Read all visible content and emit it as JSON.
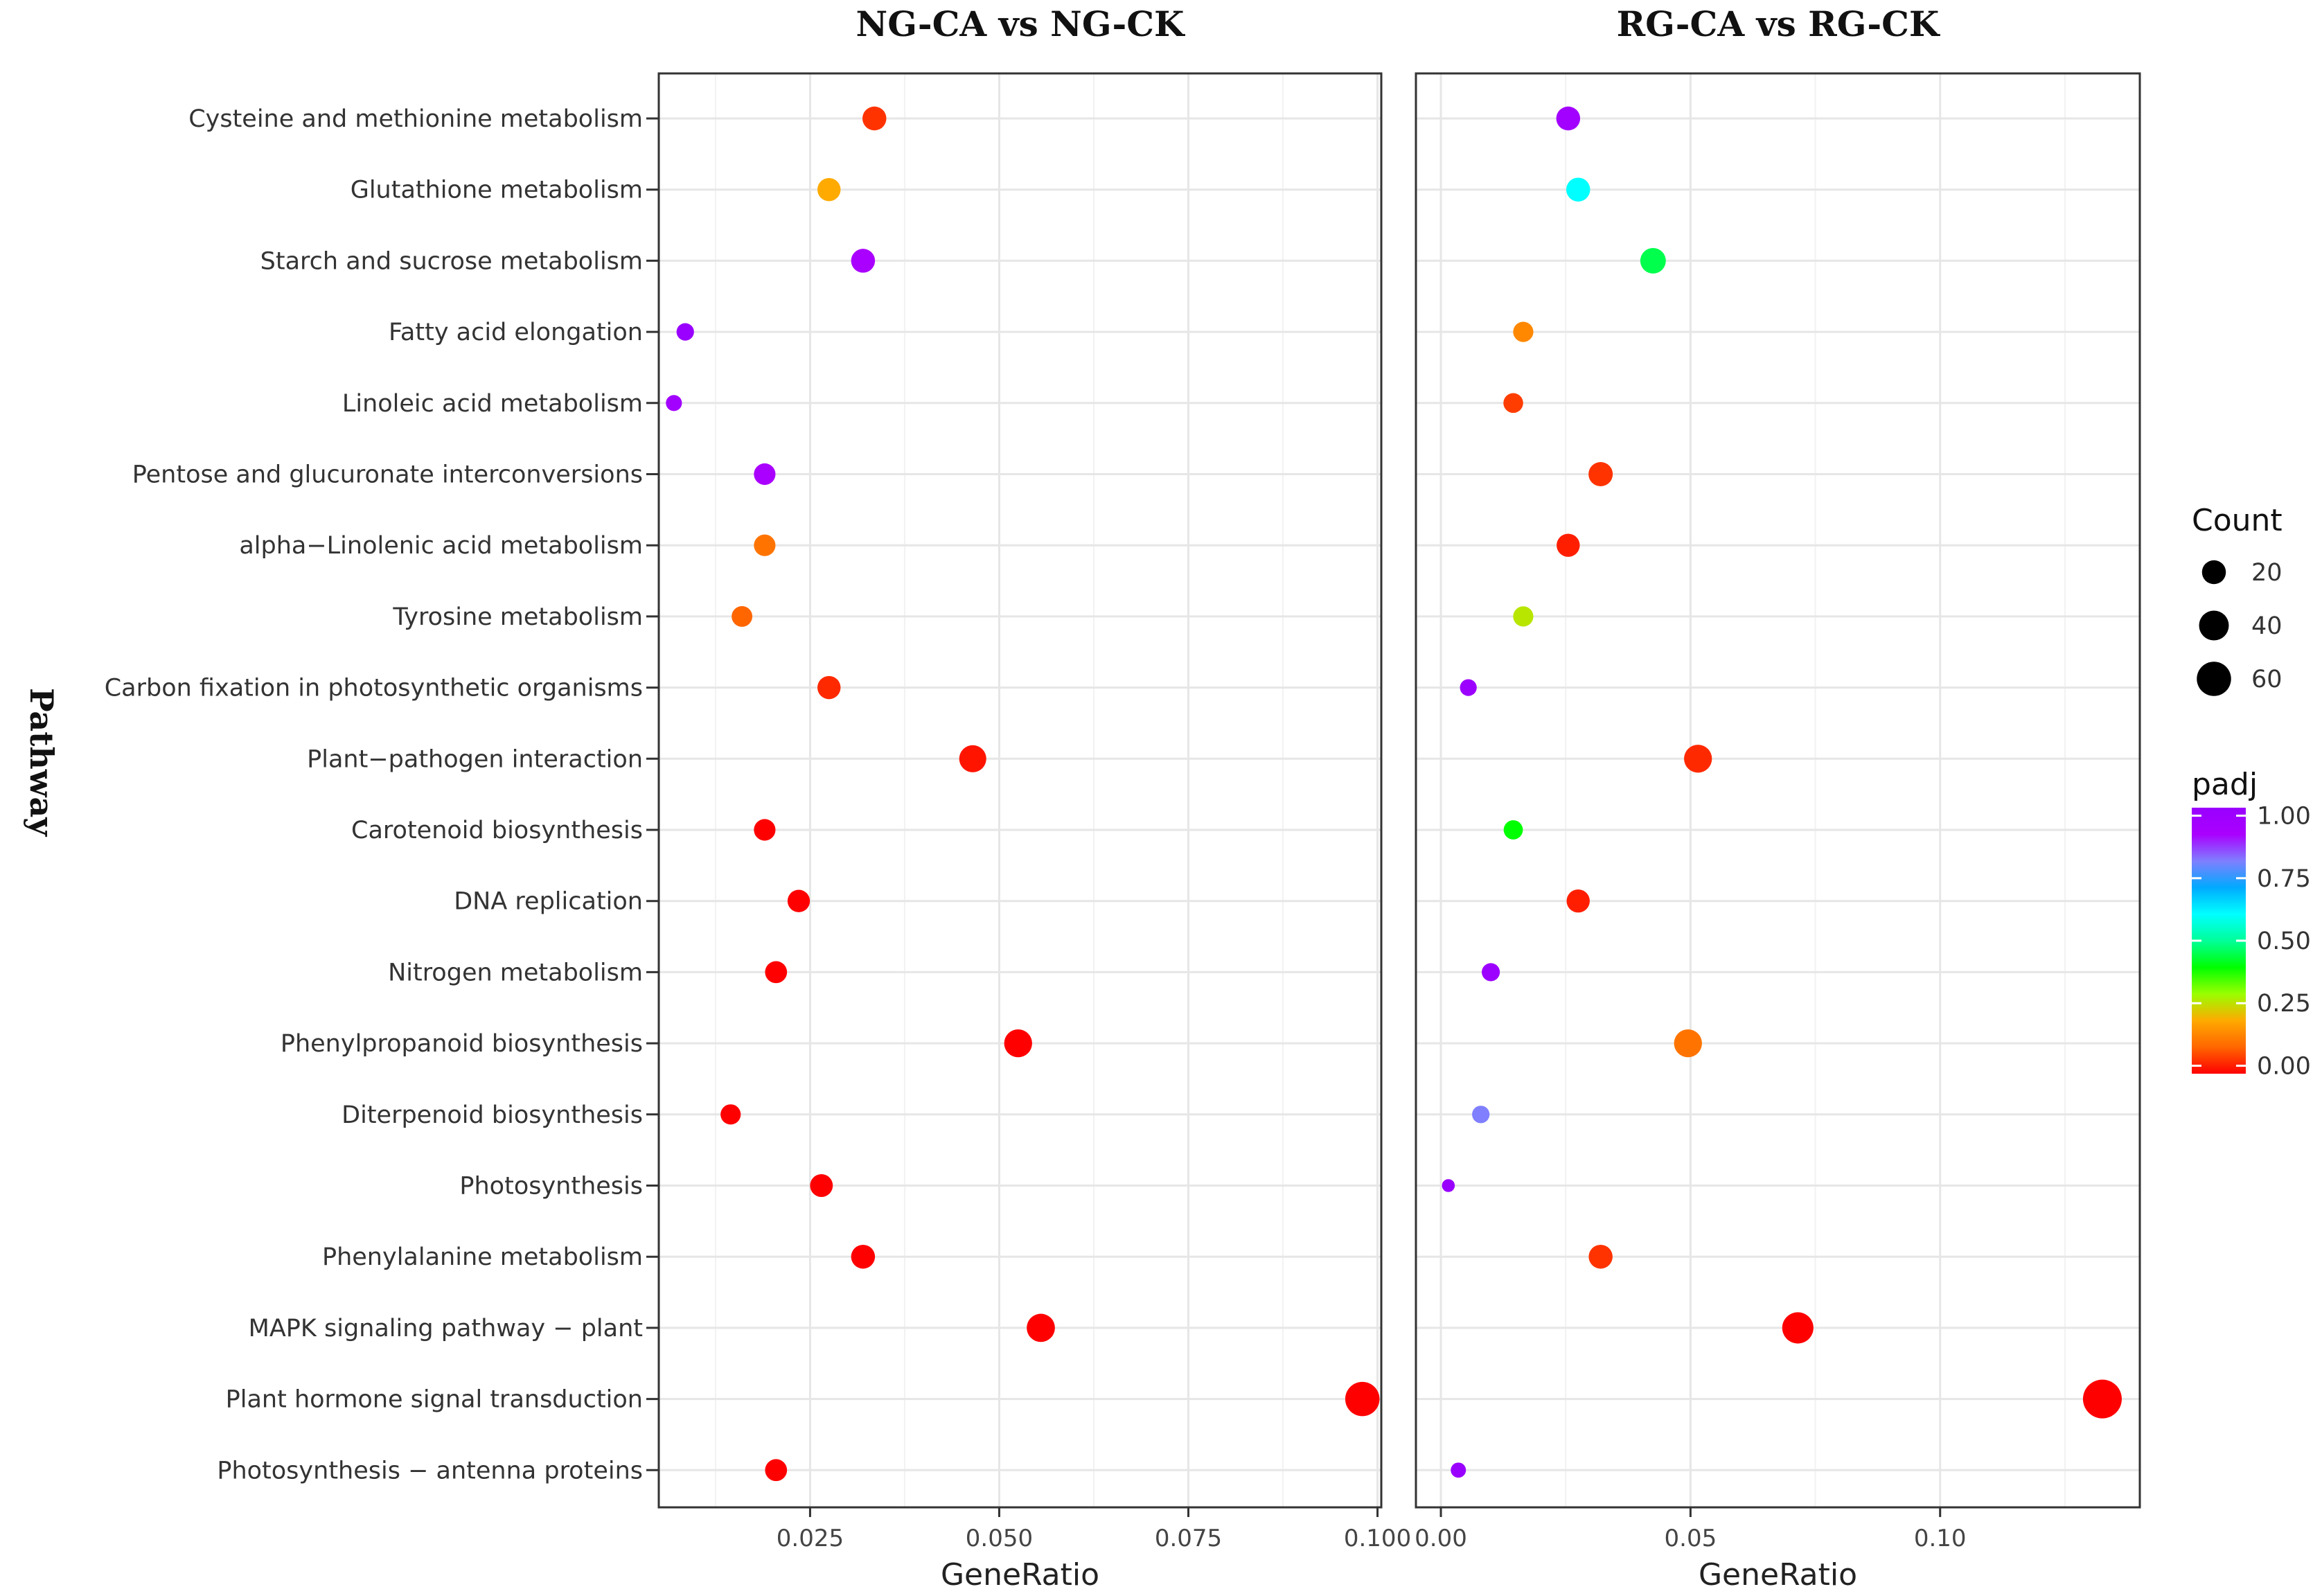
{
  "chart_data": {
    "type": "scatter",
    "y_title": "Pathway",
    "categories": [
      "Cysteine and methionine metabolism",
      "Glutathione metabolism",
      "Starch and sucrose metabolism",
      "Fatty acid elongation",
      "Linoleic acid metabolism",
      "Pentose and glucuronate interconversions",
      "alpha−Linolenic acid metabolism",
      "Tyrosine metabolism",
      "Carbon fixation in photosynthetic organisms",
      "Plant−pathogen interaction",
      "Carotenoid biosynthesis",
      "DNA replication",
      "Nitrogen metabolism",
      "Phenylpropanoid biosynthesis",
      "Diterpenoid biosynthesis",
      "Photosynthesis",
      "Phenylalanine metabolism",
      "MAPK signaling pathway − plant",
      "Plant hormone signal transduction",
      "Photosynthesis − antenna proteins"
    ],
    "panels": [
      {
        "title": "NG-CA vs NG-CK",
        "xlabel": "GeneRatio",
        "xlim": [
          0.005,
          0.1005
        ],
        "xticks": [
          0.025,
          0.05,
          0.075,
          0.1
        ],
        "xtick_labels": [
          "0.025",
          "0.050",
          "0.075",
          "0.100"
        ],
        "gene_ratio": [
          0.0335,
          0.0275,
          0.032,
          0.0085,
          0.007,
          0.019,
          0.019,
          0.016,
          0.0275,
          0.0465,
          0.019,
          0.0235,
          0.0205,
          0.0525,
          0.0145,
          0.0265,
          0.032,
          0.0555,
          0.098,
          0.0205
        ],
        "count": [
          20,
          18,
          20,
          6,
          4,
          14,
          14,
          12,
          18,
          30,
          14,
          16,
          15,
          33,
          11,
          17,
          20,
          34,
          60,
          15
        ],
        "padj": [
          0.05,
          0.2,
          0.9,
          1.0,
          0.95,
          0.9,
          0.12,
          0.1,
          0.04,
          0.02,
          0.0,
          0.0,
          0.0,
          0.0,
          0.0,
          0.0,
          0.0,
          0.0,
          0.0,
          0.0
        ]
      },
      {
        "title": "RG-CA vs RG-CK",
        "xlabel": "GeneRatio",
        "xlim": [
          -0.005,
          0.14
        ],
        "xticks": [
          0.0,
          0.05,
          0.1
        ],
        "xtick_labels": [
          "0.00",
          "0.05",
          "0.10"
        ],
        "gene_ratio": [
          0.0255,
          0.0275,
          0.0425,
          0.0165,
          0.0145,
          0.032,
          0.0255,
          0.0165,
          0.0055,
          0.0515,
          0.0145,
          0.0275,
          0.01,
          0.0495,
          0.008,
          0.0015,
          0.032,
          0.0715,
          0.1325,
          0.0035
        ],
        "count": [
          20,
          20,
          25,
          11,
          10,
          21,
          18,
          11,
          5,
          33,
          9,
          18,
          7,
          33,
          6,
          1,
          20,
          46,
          84,
          3
        ],
        "padj": [
          0.95,
          0.6,
          0.45,
          0.15,
          0.06,
          0.05,
          0.03,
          0.27,
          0.98,
          0.04,
          0.4,
          0.03,
          0.98,
          0.12,
          0.8,
          1.0,
          0.05,
          0.0,
          0.0,
          1.0
        ]
      }
    ],
    "legend": {
      "size_title": "Count",
      "size_values": [
        20,
        40,
        60
      ],
      "size_labels": [
        "20",
        "40",
        "60"
      ],
      "color_title": "padj",
      "color_ticks": [
        1.0,
        0.75,
        0.5,
        0.25,
        0.0
      ],
      "color_tick_labels": [
        "1.00",
        "0.75",
        "0.50",
        "0.25",
        "0.00"
      ],
      "color_scale": [
        "#ff0000",
        "#ff6600",
        "#ffaa00",
        "#99ff00",
        "#00ff00",
        "#00ff99",
        "#00ffff",
        "#00aaff",
        "#7f7fff",
        "#aa00ff",
        "#9900ff"
      ]
    }
  }
}
